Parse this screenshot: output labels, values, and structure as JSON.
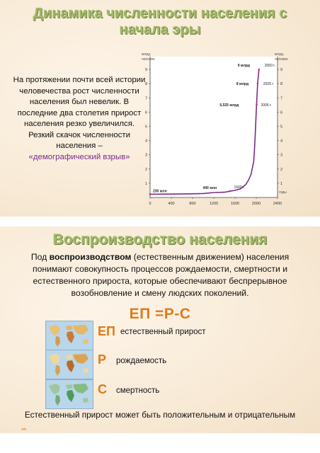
{
  "slide1": {
    "title_line1": "Динамика численности населения с",
    "title_line2": "начала эры",
    "text_part1": "На протяжении почти всей истории человечества рост численности населения был невелик. В последние два столетия прирост населения резко увеличился.",
    "text_part2": "Резкий скачок  численности населения –",
    "text_highlight": "«демографический взрыв»"
  },
  "chart_data": {
    "type": "line",
    "ylabel": "млрд. человек",
    "xlabel": "годы",
    "x_ticks": [
      "0",
      "400",
      "800",
      "1200",
      "1600",
      "2000",
      "2400"
    ],
    "y_ticks": [
      "1",
      "2",
      "3",
      "4",
      "5",
      "6",
      "7",
      "8",
      "9"
    ],
    "xlim": [
      0,
      2400
    ],
    "ylim": [
      0,
      9.5
    ],
    "grid": false,
    "series": [
      {
        "color": "#7a2a8e",
        "x": [
          0,
          400,
          800,
          1000,
          1200,
          1400,
          1500,
          1600,
          1700,
          1800,
          1850,
          1900,
          1950,
          1960,
          1970,
          1980,
          1990,
          2000,
          2006,
          2025,
          2050
        ],
        "y": [
          0.23,
          0.24,
          0.26,
          0.28,
          0.35,
          0.37,
          0.44,
          0.5,
          0.6,
          0.9,
          1.2,
          1.6,
          2.5,
          3.0,
          3.7,
          4.4,
          5.3,
          6.1,
          6.525,
          8.0,
          9.0
        ]
      }
    ],
    "annotations": [
      {
        "value": "9 млрд",
        "year": "2050 г.",
        "x": 2050,
        "y": 9
      },
      {
        "value": "8 млрд",
        "year": "2025 г.",
        "x": 2025,
        "y": 8
      },
      {
        "value": "6,525 млрд",
        "year": "2006 г.",
        "x": 2006,
        "y": 6.525
      },
      {
        "value": "440 млн",
        "year": "1500 г.",
        "x": 1500,
        "y": 0.44
      },
      {
        "value": "230 млн",
        "year": "",
        "x": 0,
        "y": 0.23
      }
    ]
  },
  "slide2": {
    "title": "Воспроизводство населения",
    "para_lead": "Под",
    "para_bold": "воспроизводством",
    "para_rest": "(естественным движением) населения понимают совокупность процессов рождаемости, смертности и естественного прироста, которые обеспечивают беспрерывное возобновление и смену людских поколений.",
    "formula": "ЕП =Р-С",
    "items": [
      {
        "abbr": "ЕП",
        "label": "естественный прирост"
      },
      {
        "abbr": "Р",
        "label": "рождаемость"
      },
      {
        "abbr": "С",
        "label": "смертность"
      }
    ],
    "bottom": "Естественный прирост может быть положительным и отрицательным",
    "chevrons": "^^"
  },
  "colors": {
    "title": "#a3b86a",
    "accent": "#e07a1a",
    "curve": "#7a2a8e"
  }
}
